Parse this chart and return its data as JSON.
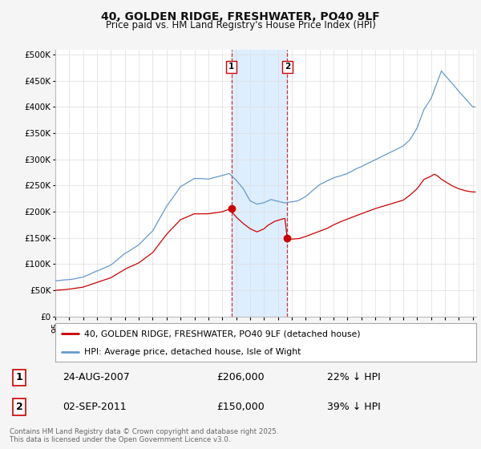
{
  "title1": "40, GOLDEN RIDGE, FRESHWATER, PO40 9LF",
  "title2": "Price paid vs. HM Land Registry's House Price Index (HPI)",
  "yticks": [
    0,
    50000,
    100000,
    150000,
    200000,
    250000,
    300000,
    350000,
    400000,
    450000,
    500000
  ],
  "ytick_labels": [
    "£0",
    "£50K",
    "£100K",
    "£150K",
    "£200K",
    "£250K",
    "£300K",
    "£350K",
    "£400K",
    "£450K",
    "£500K"
  ],
  "ylim": [
    0,
    510000
  ],
  "legend1": "40, GOLDEN RIDGE, FRESHWATER, PO40 9LF (detached house)",
  "legend2": "HPI: Average price, detached house, Isle of Wight",
  "line1_color": "#cc0000",
  "line2_color": "#6699cc",
  "annotation1_date": "24-AUG-2007",
  "annotation1_price": "£206,000",
  "annotation1_hpi": "22% ↓ HPI",
  "annotation2_date": "02-SEP-2011",
  "annotation2_price": "£150,000",
  "annotation2_hpi": "39% ↓ HPI",
  "shade_color": "#ddeeff",
  "footer": "Contains HM Land Registry data © Crown copyright and database right 2025.\nThis data is licensed under the Open Government Licence v3.0.",
  "sale1_year": 2007.65,
  "sale1_price": 206000,
  "sale2_year": 2011.67,
  "sale2_price": 150000,
  "xmin": 1995.0,
  "xmax": 2025.25,
  "background_color": "#f5f5f5",
  "plot_bg_color": "#ffffff",
  "grid_color": "#dddddd"
}
